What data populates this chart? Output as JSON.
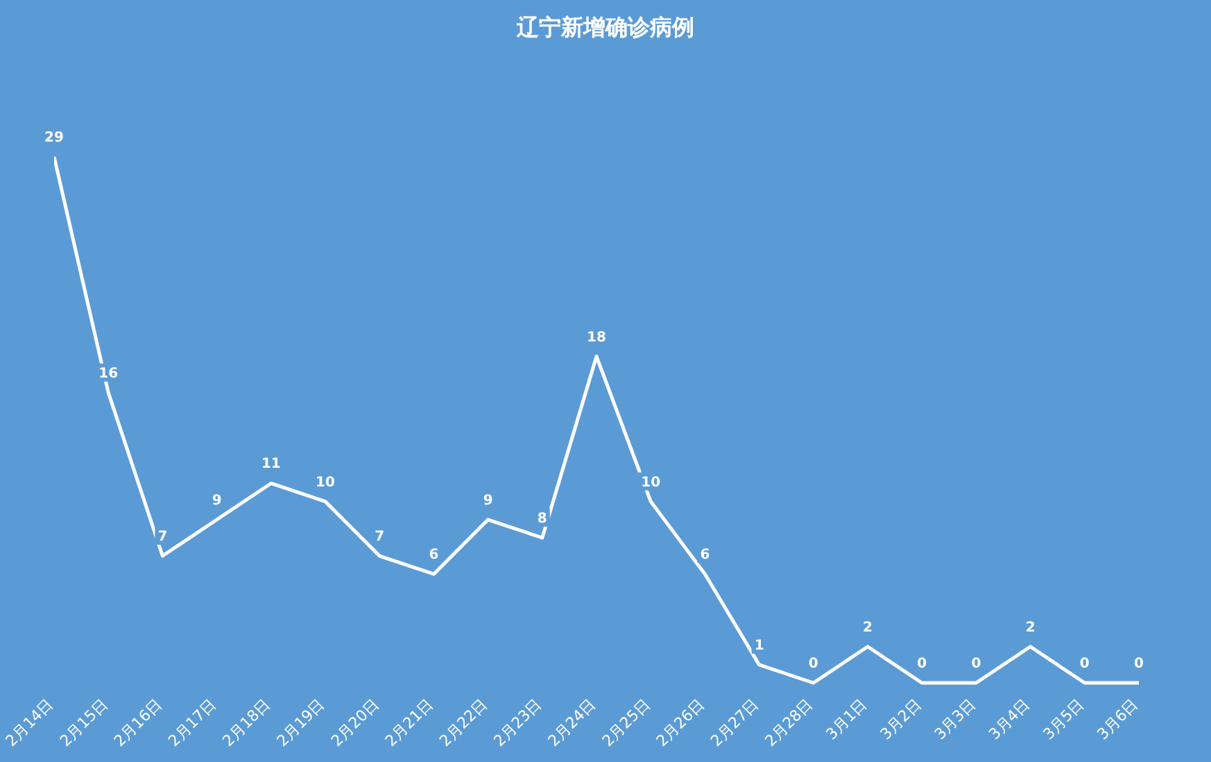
{
  "chart_data": {
    "type": "line",
    "title": "辽宁新增确诊病例",
    "categories": [
      "2月14日",
      "2月15日",
      "2月16日",
      "2月17日",
      "2月18日",
      "2月19日",
      "2月20日",
      "2月21日",
      "2月22日",
      "2月23日",
      "2月24日",
      "2月25日",
      "2月26日",
      "2月27日",
      "2月28日",
      "3月1日",
      "3月2日",
      "3月3日",
      "3月4日",
      "3月5日",
      "3月6日"
    ],
    "values": [
      29,
      16,
      7,
      9,
      11,
      10,
      7,
      6,
      9,
      8,
      18,
      10,
      6,
      1,
      0,
      2,
      0,
      0,
      2,
      0,
      0
    ],
    "color": "#ffffff",
    "data_labels": true,
    "marker": "none",
    "tick_labels": "x"
  }
}
